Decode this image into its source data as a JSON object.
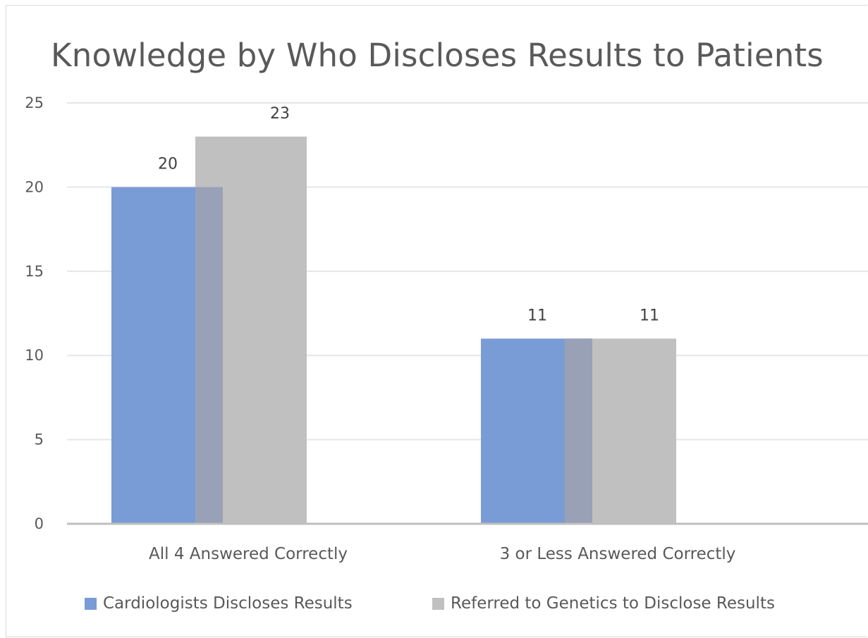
{
  "chart_data": {
    "type": "bar",
    "title": "Knowledge by Who Discloses Results to Patients",
    "categories": [
      "All 4 Answered Correctly",
      "3 or Less Answered Correctly"
    ],
    "series": [
      {
        "name": "Cardiologists Discloses Results",
        "values": [
          20,
          11
        ],
        "color": "#7a9cd6"
      },
      {
        "name": "Referred to Genetics to Disclose Results",
        "values": [
          23,
          11
        ],
        "color": "#c0c0c0"
      }
    ],
    "overlap_color": "#98a1b5",
    "ylim": [
      0,
      25
    ],
    "yticks": [
      0,
      5,
      10,
      15,
      20,
      25
    ],
    "grid": true,
    "legend": "bottom",
    "data_labels": true
  }
}
